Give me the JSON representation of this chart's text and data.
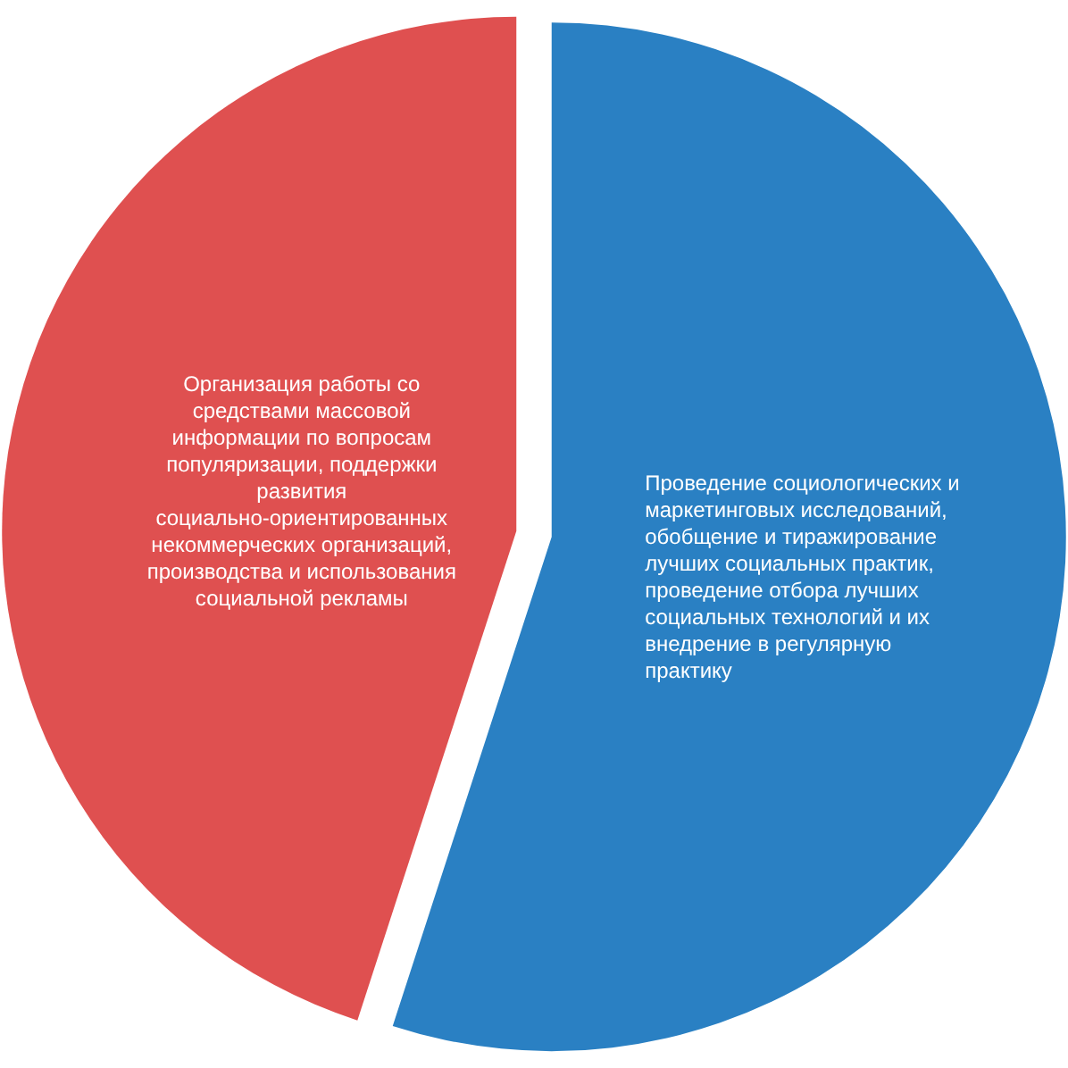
{
  "chart_data": {
    "type": "pie",
    "categories": [
      "Проведение социологических и маркетинговых исследований, обобщение и тиражирование лучших социальных практик, проведение отбора лучших социальных технологий и их внедрение в регулярную практику",
      "Организация работы со средствами массовой информации по вопросам популяризации, поддержки развития социально-ориентированных некоммерческих организаций, производства и использования социальной рекламы"
    ],
    "values": [
      55,
      45
    ],
    "colors": [
      "#2a80c3",
      "#df5050"
    ]
  }
}
